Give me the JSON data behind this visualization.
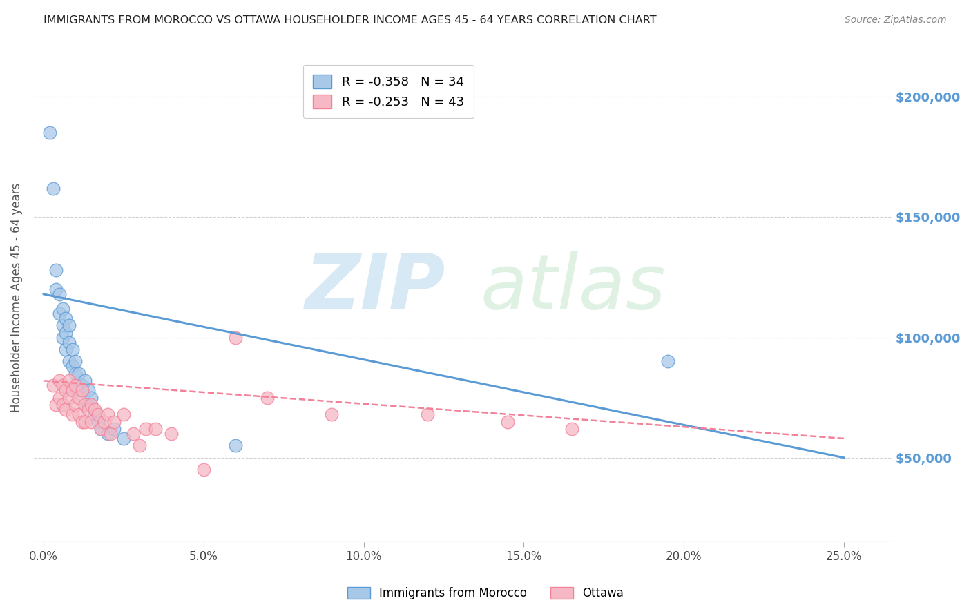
{
  "title": "IMMIGRANTS FROM MOROCCO VS OTTAWA HOUSEHOLDER INCOME AGES 45 - 64 YEARS CORRELATION CHART",
  "source": "Source: ZipAtlas.com",
  "ylabel": "Householder Income Ages 45 - 64 years",
  "xlabel_ticks": [
    "0.0%",
    "5.0%",
    "10.0%",
    "15.0%",
    "20.0%",
    "25.0%"
  ],
  "xlabel_vals": [
    0.0,
    0.05,
    0.1,
    0.15,
    0.2,
    0.25
  ],
  "ytick_labels": [
    "$50,000",
    "$100,000",
    "$150,000",
    "$200,000"
  ],
  "ytick_vals": [
    50000,
    100000,
    150000,
    200000
  ],
  "xlim": [
    -0.003,
    0.265
  ],
  "ylim": [
    15000,
    218000
  ],
  "legend_entries": [
    {
      "label": "R = -0.358   N = 34",
      "color": "#a8c8e8"
    },
    {
      "label": "R = -0.253   N = 43",
      "color": "#f5a0b0"
    }
  ],
  "morocco_x": [
    0.002,
    0.003,
    0.004,
    0.004,
    0.005,
    0.005,
    0.006,
    0.006,
    0.006,
    0.007,
    0.007,
    0.007,
    0.008,
    0.008,
    0.008,
    0.009,
    0.009,
    0.01,
    0.01,
    0.011,
    0.011,
    0.012,
    0.013,
    0.014,
    0.014,
    0.015,
    0.016,
    0.017,
    0.018,
    0.02,
    0.022,
    0.025,
    0.06,
    0.195
  ],
  "morocco_y": [
    185000,
    162000,
    120000,
    128000,
    118000,
    110000,
    112000,
    105000,
    100000,
    108000,
    102000,
    95000,
    105000,
    98000,
    90000,
    95000,
    88000,
    90000,
    85000,
    85000,
    78000,
    80000,
    82000,
    78000,
    72000,
    75000,
    68000,
    65000,
    62000,
    60000,
    62000,
    58000,
    55000,
    90000
  ],
  "ottawa_x": [
    0.003,
    0.004,
    0.005,
    0.005,
    0.006,
    0.006,
    0.007,
    0.007,
    0.008,
    0.008,
    0.009,
    0.009,
    0.01,
    0.01,
    0.011,
    0.011,
    0.012,
    0.012,
    0.013,
    0.013,
    0.014,
    0.015,
    0.015,
    0.016,
    0.017,
    0.018,
    0.019,
    0.02,
    0.021,
    0.022,
    0.025,
    0.028,
    0.03,
    0.032,
    0.035,
    0.04,
    0.05,
    0.06,
    0.07,
    0.09,
    0.12,
    0.145,
    0.165
  ],
  "ottawa_y": [
    80000,
    72000,
    82000,
    75000,
    80000,
    72000,
    78000,
    70000,
    82000,
    75000,
    78000,
    68000,
    80000,
    72000,
    75000,
    68000,
    78000,
    65000,
    72000,
    65000,
    70000,
    72000,
    65000,
    70000,
    68000,
    62000,
    65000,
    68000,
    60000,
    65000,
    68000,
    60000,
    55000,
    62000,
    62000,
    60000,
    45000,
    100000,
    75000,
    68000,
    68000,
    65000,
    62000
  ],
  "morocco_line_x": [
    0.0,
    0.25
  ],
  "morocco_line_y": [
    118000,
    50000
  ],
  "ottawa_line_x": [
    0.0,
    0.25
  ],
  "ottawa_line_y": [
    82000,
    58000
  ],
  "blue_color": "#5b9bd5",
  "pink_color": "#f48098",
  "blue_fill": "#a8c8e8",
  "pink_fill": "#f5b8c4",
  "background_color": "#ffffff",
  "grid_color": "#cccccc",
  "title_color": "#333333",
  "axis_label_color": "#555555",
  "right_tick_color": "#5b9bd5"
}
